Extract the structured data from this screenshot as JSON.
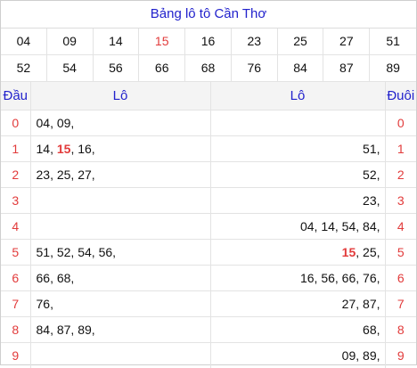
{
  "title": "Bảng lô tô Cần Thơ",
  "numbers": [
    {
      "value": "04",
      "highlight": false
    },
    {
      "value": "09",
      "highlight": false
    },
    {
      "value": "14",
      "highlight": false
    },
    {
      "value": "15",
      "highlight": true
    },
    {
      "value": "16",
      "highlight": false
    },
    {
      "value": "23",
      "highlight": false
    },
    {
      "value": "25",
      "highlight": false
    },
    {
      "value": "27",
      "highlight": false
    },
    {
      "value": "51",
      "highlight": false
    },
    {
      "value": "52",
      "highlight": false
    },
    {
      "value": "54",
      "highlight": false
    },
    {
      "value": "56",
      "highlight": false
    },
    {
      "value": "66",
      "highlight": false
    },
    {
      "value": "68",
      "highlight": false
    },
    {
      "value": "76",
      "highlight": false
    },
    {
      "value": "84",
      "highlight": false
    },
    {
      "value": "87",
      "highlight": false
    },
    {
      "value": "89",
      "highlight": false
    }
  ],
  "headers": {
    "dau": "Đầu",
    "lo_left": "Lô",
    "lo_right": "Lô",
    "duoi": "Đuôi"
  },
  "rows": [
    {
      "digit": "0",
      "left": [
        {
          "t": "04, "
        },
        {
          "t": "09, "
        }
      ],
      "right": []
    },
    {
      "digit": "1",
      "left": [
        {
          "t": "14, "
        },
        {
          "t": "15",
          "hl": true
        },
        {
          "t": ", "
        },
        {
          "t": "16, "
        }
      ],
      "right": [
        {
          "t": "51, "
        }
      ]
    },
    {
      "digit": "2",
      "left": [
        {
          "t": "23, "
        },
        {
          "t": "25, "
        },
        {
          "t": "27, "
        }
      ],
      "right": [
        {
          "t": "52, "
        }
      ]
    },
    {
      "digit": "3",
      "left": [],
      "right": [
        {
          "t": "23, "
        }
      ]
    },
    {
      "digit": "4",
      "left": [],
      "right": [
        {
          "t": "04, "
        },
        {
          "t": "14, "
        },
        {
          "t": "54, "
        },
        {
          "t": "84, "
        }
      ]
    },
    {
      "digit": "5",
      "left": [
        {
          "t": "51, "
        },
        {
          "t": "52, "
        },
        {
          "t": "54, "
        },
        {
          "t": "56, "
        }
      ],
      "right": [
        {
          "t": "15",
          "hl": true
        },
        {
          "t": ", "
        },
        {
          "t": "25, "
        }
      ]
    },
    {
      "digit": "6",
      "left": [
        {
          "t": "66, "
        },
        {
          "t": "68, "
        }
      ],
      "right": [
        {
          "t": "16, "
        },
        {
          "t": "56, "
        },
        {
          "t": "66, "
        },
        {
          "t": "76, "
        }
      ]
    },
    {
      "digit": "7",
      "left": [
        {
          "t": "76, "
        }
      ],
      "right": [
        {
          "t": "27, "
        },
        {
          "t": "87, "
        }
      ]
    },
    {
      "digit": "8",
      "left": [
        {
          "t": "84, "
        },
        {
          "t": "87, "
        },
        {
          "t": "89, "
        }
      ],
      "right": [
        {
          "t": "68, "
        }
      ]
    },
    {
      "digit": "9",
      "left": [],
      "right": [
        {
          "t": "09, "
        },
        {
          "t": "89, "
        }
      ]
    }
  ]
}
